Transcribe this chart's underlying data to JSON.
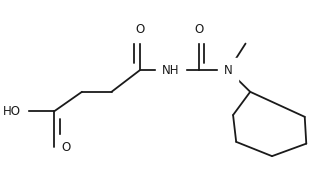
{
  "bg_color": "#ffffff",
  "line_color": "#1a1a1a",
  "text_color": "#1a1a1a",
  "bond_lw": 1.3,
  "font_size": 8.5,
  "fig_width": 3.21,
  "fig_height": 1.89,
  "dpi": 100,
  "xlim": [
    0,
    1
  ],
  "ylim": [
    1.05,
    0.0
  ]
}
